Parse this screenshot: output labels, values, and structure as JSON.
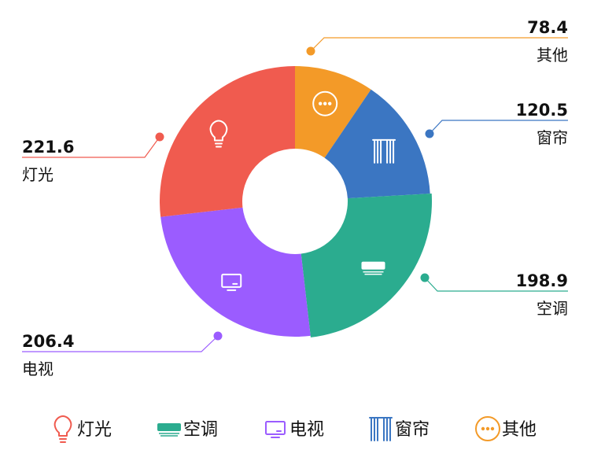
{
  "chart_data": {
    "type": "pie",
    "donut": true,
    "title": "",
    "categories": [
      "灯光",
      "空调",
      "电视",
      "窗帘",
      "其他"
    ],
    "values": [
      221.6,
      198.9,
      206.4,
      120.5,
      78.4
    ],
    "value_labels": [
      "221.6",
      "198.9",
      "206.4",
      "120.5",
      "78.4"
    ],
    "slice_order": [
      "其他",
      "窗帘",
      "空调",
      "电视",
      "灯光"
    ],
    "colors": {
      "灯光": "#f05b4f",
      "空调": "#2bac8f",
      "电视": "#9b5cff",
      "窗帘": "#3b76c2",
      "其他": "#f39a28"
    },
    "icons": {
      "灯光": "lightbulb-icon",
      "空调": "air-conditioner-icon",
      "电视": "tv-icon",
      "窗帘": "curtain-icon",
      "其他": "more-icon"
    },
    "legend": {
      "placement": "bottom",
      "items": [
        "灯光",
        "空调",
        "电视",
        "窗帘",
        "其他"
      ]
    }
  }
}
